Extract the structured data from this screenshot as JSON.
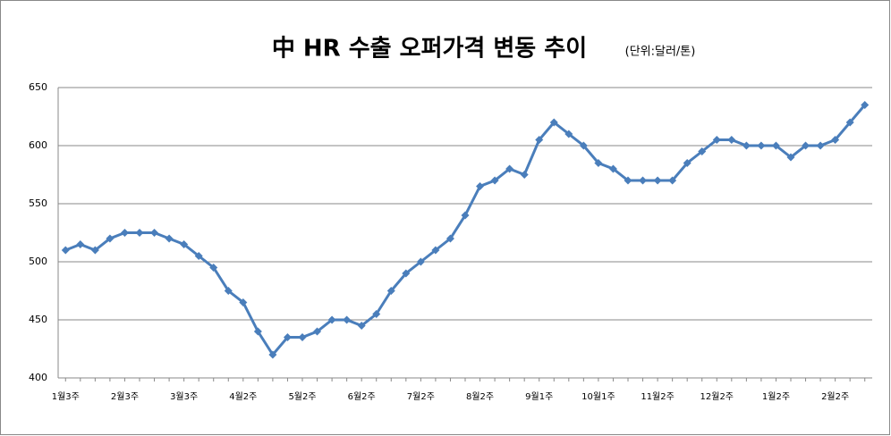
{
  "chart_data": {
    "type": "line",
    "title": "中 HR 수출 오퍼가격 변동 추이",
    "subtitle": "(단위:달러/톤)",
    "categories": [
      "1월3주",
      null,
      null,
      null,
      "2월3주",
      null,
      null,
      null,
      "3월3주",
      null,
      null,
      null,
      "4월2주",
      null,
      null,
      null,
      "5월2주",
      null,
      null,
      null,
      "6월2주",
      null,
      null,
      null,
      "7월2주",
      null,
      null,
      null,
      "8월2주",
      null,
      null,
      null,
      "9월1주",
      null,
      null,
      null,
      "10월1주",
      null,
      null,
      null,
      "11월2주",
      null,
      null,
      null,
      "12월2주",
      null,
      null,
      null,
      "1월2주",
      null,
      null,
      null,
      "2월2주",
      null,
      null
    ],
    "values": [
      510,
      515,
      510,
      520,
      525,
      525,
      525,
      520,
      515,
      505,
      495,
      475,
      465,
      440,
      420,
      435,
      435,
      440,
      450,
      450,
      445,
      455,
      475,
      490,
      500,
      510,
      520,
      540,
      565,
      570,
      580,
      575,
      605,
      620,
      610,
      600,
      585,
      580,
      570,
      570,
      570,
      570,
      585,
      595,
      605,
      605,
      600,
      600,
      600,
      590,
      600,
      600,
      605,
      620,
      635
    ],
    "color": "#4a7ebb",
    "ylim": [
      400,
      650
    ],
    "yticks": [
      400,
      450,
      500,
      550,
      600,
      650
    ],
    "grid": true
  }
}
